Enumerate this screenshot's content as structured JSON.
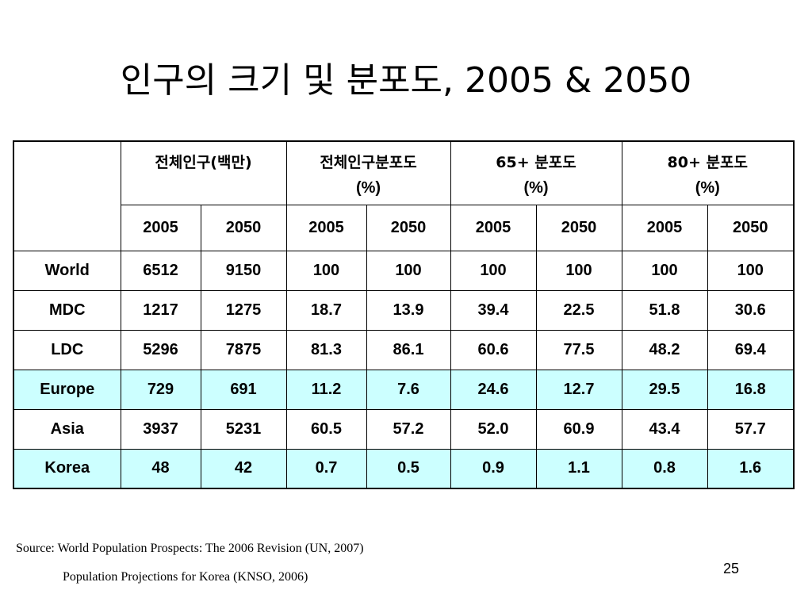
{
  "slide": {
    "title": "인구의 크기 및 분포도, 2005 & 2050",
    "page_number": "25"
  },
  "table": {
    "groups": [
      {
        "line1": "전체인구(백만)",
        "line2": ""
      },
      {
        "line1": "전체인구분포도",
        "line2": "(%)"
      },
      {
        "line1": "65+ 분포도",
        "line2": "(%)"
      },
      {
        "line1": "80+ 분포도",
        "line2": "(%)"
      }
    ],
    "years": [
      "2005",
      "2050",
      "2005",
      "2050",
      "2005",
      "2050",
      "2005",
      "2050"
    ],
    "rows": [
      {
        "label": "World",
        "values": [
          "6512",
          "9150",
          "100",
          "100",
          "100",
          "100",
          "100",
          "100"
        ]
      },
      {
        "label": "MDC",
        "values": [
          "1217",
          "1275",
          "18.7",
          "13.9",
          "39.4",
          "22.5",
          "51.8",
          "30.6"
        ]
      },
      {
        "label": "LDC",
        "values": [
          "5296",
          "7875",
          "81.3",
          "86.1",
          "60.6",
          "77.5",
          "48.2",
          "69.4"
        ]
      },
      {
        "label": "Europe",
        "values": [
          "729",
          "691",
          "11.2",
          "7.6",
          "24.6",
          "12.7",
          "29.5",
          "16.8"
        ]
      },
      {
        "label": "Asia",
        "values": [
          "3937",
          "5231",
          "60.5",
          "57.2",
          "52.0",
          "60.9",
          "43.4",
          "57.7"
        ]
      },
      {
        "label": "Korea",
        "values": [
          "48",
          "42",
          "0.7",
          "0.5",
          "0.9",
          "1.1",
          "0.8",
          "1.6"
        ]
      }
    ]
  },
  "colors": {
    "highlight_row_bg": "#ccffff",
    "border": "#000000"
  },
  "source": {
    "line1": "Source: World Population Prospects: The 2006 Revision (UN, 2007)",
    "line2": "Population Projections for Korea (KNSO, 2006)"
  }
}
